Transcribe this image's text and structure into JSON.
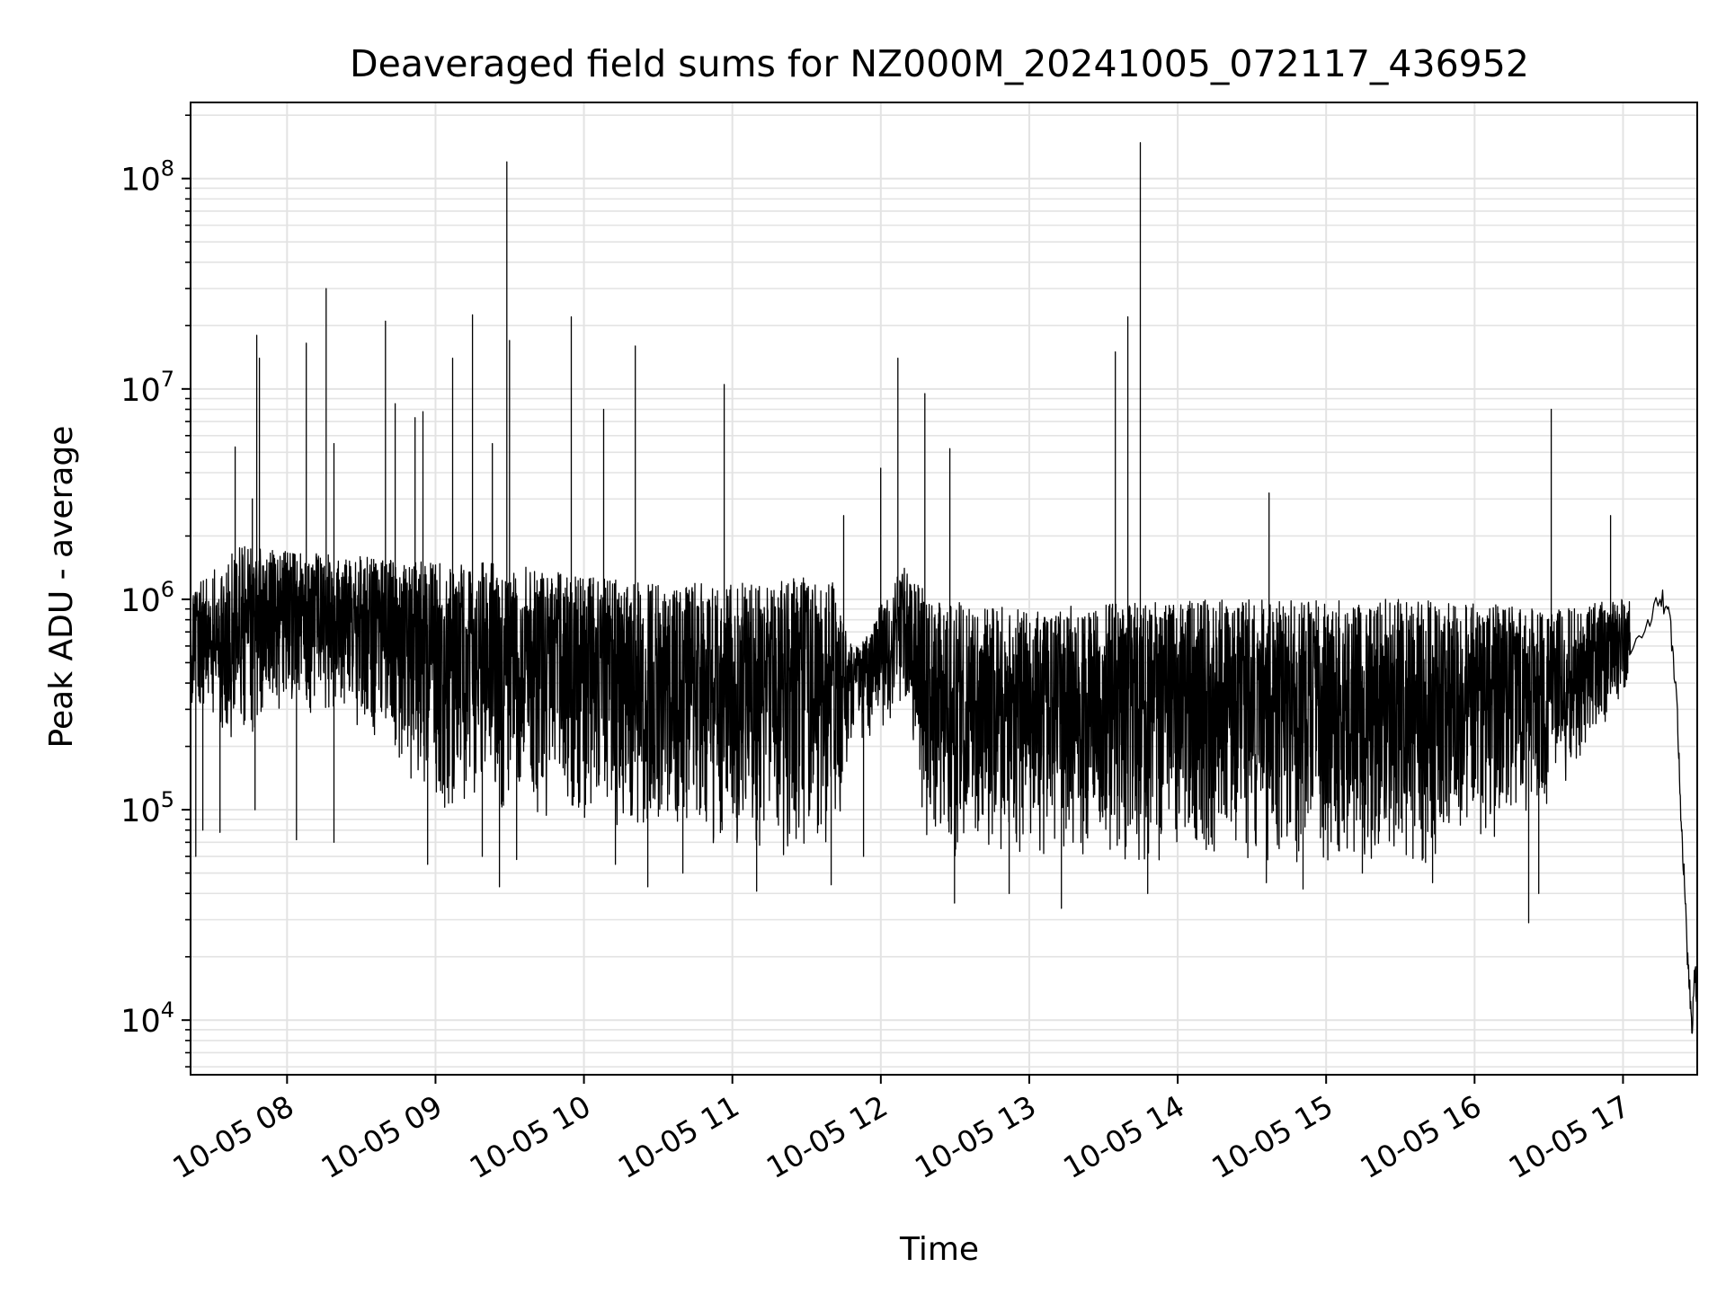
{
  "chart_data": {
    "type": "line",
    "title": "Deaveraged field sums for NZ000M_20241005_072117_436952",
    "xlabel": "Time",
    "ylabel": "Peak ADU - average",
    "yscale": "log",
    "ylim": [
      5500,
      230000000
    ],
    "xlim": [
      "2024-10-05 07:21",
      "2024-10-05 17:30"
    ],
    "grid": true,
    "x_ticks": [
      {
        "time": "2024-10-05 08:00",
        "label": "10-05 08"
      },
      {
        "time": "2024-10-05 09:00",
        "label": "10-05 09"
      },
      {
        "time": "2024-10-05 10:00",
        "label": "10-05 10"
      },
      {
        "time": "2024-10-05 11:00",
        "label": "10-05 11"
      },
      {
        "time": "2024-10-05 12:00",
        "label": "10-05 12"
      },
      {
        "time": "2024-10-05 13:00",
        "label": "10-05 13"
      },
      {
        "time": "2024-10-05 14:00",
        "label": "10-05 14"
      },
      {
        "time": "2024-10-05 15:00",
        "label": "10-05 15"
      },
      {
        "time": "2024-10-05 16:00",
        "label": "10-05 16"
      },
      {
        "time": "2024-10-05 17:00",
        "label": "10-05 17"
      }
    ],
    "y_ticks": [
      {
        "value": 10000,
        "base": "10",
        "exp": "4"
      },
      {
        "value": 100000,
        "base": "10",
        "exp": "5"
      },
      {
        "value": 1000000,
        "base": "10",
        "exp": "6"
      },
      {
        "value": 10000000,
        "base": "10",
        "exp": "7"
      },
      {
        "value": 100000000,
        "base": "10",
        "exp": "8"
      }
    ],
    "series": [
      {
        "color": "#000000",
        "envelope": [
          {
            "time": "2024-10-05 07:21",
            "low": 300000,
            "high": 1100000
          },
          {
            "time": "2024-10-05 07:40",
            "low": 200000,
            "high": 1800000
          },
          {
            "time": "2024-10-05 08:00",
            "low": 300000,
            "high": 1700000
          },
          {
            "time": "2024-10-05 08:30",
            "low": 250000,
            "high": 1600000
          },
          {
            "time": "2024-10-05 09:00",
            "low": 100000,
            "high": 1500000
          },
          {
            "time": "2024-10-05 09:30",
            "low": 100000,
            "high": 1500000
          },
          {
            "time": "2024-10-05 10:00",
            "low": 80000,
            "high": 1300000
          },
          {
            "time": "2024-10-05 10:30",
            "low": 70000,
            "high": 1200000
          },
          {
            "time": "2024-10-05 11:00",
            "low": 60000,
            "high": 1200000
          },
          {
            "time": "2024-10-05 11:40",
            "low": 60000,
            "high": 1300000
          },
          {
            "time": "2024-10-05 11:50",
            "low": 200000,
            "high": 600000
          },
          {
            "time": "2024-10-05 12:10",
            "low": 300000,
            "high": 1500000
          },
          {
            "time": "2024-10-05 12:20",
            "low": 60000,
            "high": 1000000
          },
          {
            "time": "2024-10-05 13:00",
            "low": 60000,
            "high": 900000
          },
          {
            "time": "2024-10-05 14:00",
            "low": 55000,
            "high": 1000000
          },
          {
            "time": "2024-10-05 15:00",
            "low": 55000,
            "high": 1000000
          },
          {
            "time": "2024-10-05 15:45",
            "low": 55000,
            "high": 1000000
          },
          {
            "time": "2024-10-05 16:30",
            "low": 100000,
            "high": 900000
          },
          {
            "time": "2024-10-05 17:00",
            "low": 350000,
            "high": 1000000
          },
          {
            "time": "2024-10-05 17:15",
            "low": 700000,
            "high": 1300000
          }
        ],
        "spikes": [
          {
            "time": "2024-10-05 07:39",
            "value": 5300000
          },
          {
            "time": "2024-10-05 07:46",
            "value": 3000000
          },
          {
            "time": "2024-10-05 07:48",
            "value": 18000000
          },
          {
            "time": "2024-10-05 07:49",
            "value": 14000000
          },
          {
            "time": "2024-10-05 08:08",
            "value": 16500000
          },
          {
            "time": "2024-10-05 08:16",
            "value": 30000000
          },
          {
            "time": "2024-10-05 08:19",
            "value": 5500000
          },
          {
            "time": "2024-10-05 08:40",
            "value": 21000000
          },
          {
            "time": "2024-10-05 08:44",
            "value": 8500000
          },
          {
            "time": "2024-10-05 08:52",
            "value": 7300000
          },
          {
            "time": "2024-10-05 08:55",
            "value": 7800000
          },
          {
            "time": "2024-10-05 09:07",
            "value": 14000000
          },
          {
            "time": "2024-10-05 09:15",
            "value": 22500000
          },
          {
            "time": "2024-10-05 09:23",
            "value": 5500000
          },
          {
            "time": "2024-10-05 09:29",
            "value": 120000000
          },
          {
            "time": "2024-10-05 09:30",
            "value": 17000000
          },
          {
            "time": "2024-10-05 09:55",
            "value": 22000000
          },
          {
            "time": "2024-10-05 10:08",
            "value": 8000000
          },
          {
            "time": "2024-10-05 10:21",
            "value": 16000000
          },
          {
            "time": "2024-10-05 10:57",
            "value": 10500000
          },
          {
            "time": "2024-10-05 11:45",
            "value": 2500000
          },
          {
            "time": "2024-10-05 12:00",
            "value": 4200000
          },
          {
            "time": "2024-10-05 12:07",
            "value": 14000000
          },
          {
            "time": "2024-10-05 12:18",
            "value": 9500000
          },
          {
            "time": "2024-10-05 12:28",
            "value": 5200000
          },
          {
            "time": "2024-10-05 13:35",
            "value": 15000000
          },
          {
            "time": "2024-10-05 13:40",
            "value": 22000000
          },
          {
            "time": "2024-10-05 13:45",
            "value": 148000000
          },
          {
            "time": "2024-10-05 14:37",
            "value": 3200000
          },
          {
            "time": "2024-10-05 16:31",
            "value": 8000000
          },
          {
            "time": "2024-10-05 16:55",
            "value": 2500000
          }
        ],
        "dips": [
          {
            "time": "2024-10-05 07:23",
            "value": 60000
          },
          {
            "time": "2024-10-05 07:26",
            "value": 80000
          },
          {
            "time": "2024-10-05 07:33",
            "value": 78000
          },
          {
            "time": "2024-10-05 07:47",
            "value": 100000
          },
          {
            "time": "2024-10-05 08:04",
            "value": 72000
          },
          {
            "time": "2024-10-05 08:19",
            "value": 70000
          },
          {
            "time": "2024-10-05 08:57",
            "value": 55000
          },
          {
            "time": "2024-10-05 09:19",
            "value": 60000
          },
          {
            "time": "2024-10-05 09:26",
            "value": 43000
          },
          {
            "time": "2024-10-05 09:33",
            "value": 58000
          },
          {
            "time": "2024-10-05 10:13",
            "value": 55000
          },
          {
            "time": "2024-10-05 10:26",
            "value": 43000
          },
          {
            "time": "2024-10-05 10:40",
            "value": 50000
          },
          {
            "time": "2024-10-05 11:10",
            "value": 41000
          },
          {
            "time": "2024-10-05 11:40",
            "value": 44000
          },
          {
            "time": "2024-10-05 11:53",
            "value": 60000
          },
          {
            "time": "2024-10-05 12:30",
            "value": 36000
          },
          {
            "time": "2024-10-05 12:52",
            "value": 40000
          },
          {
            "time": "2024-10-05 13:13",
            "value": 34000
          },
          {
            "time": "2024-10-05 13:48",
            "value": 40000
          },
          {
            "time": "2024-10-05 14:36",
            "value": 45000
          },
          {
            "time": "2024-10-05 14:51",
            "value": 42000
          },
          {
            "time": "2024-10-05 15:15",
            "value": 50000
          },
          {
            "time": "2024-10-05 15:43",
            "value": 45000
          },
          {
            "time": "2024-10-05 16:22",
            "value": 29000
          },
          {
            "time": "2024-10-05 16:26",
            "value": 40000
          }
        ],
        "tail": [
          {
            "time": "2024-10-05 17:03",
            "value": 550000
          },
          {
            "time": "2024-10-05 17:10",
            "value": 800000
          },
          {
            "time": "2024-10-05 17:15",
            "value": 1000000
          },
          {
            "time": "2024-10-05 17:18",
            "value": 900000
          },
          {
            "time": "2024-10-05 17:20",
            "value": 600000
          },
          {
            "time": "2024-10-05 17:22",
            "value": 300000
          },
          {
            "time": "2024-10-05 17:23",
            "value": 120000
          },
          {
            "time": "2024-10-05 17:24",
            "value": 70000
          },
          {
            "time": "2024-10-05 17:25",
            "value": 40000
          },
          {
            "time": "2024-10-05 17:26",
            "value": 20000
          },
          {
            "time": "2024-10-05 17:27",
            "value": 14000
          },
          {
            "time": "2024-10-05 17:28",
            "value": 9000
          },
          {
            "time": "2024-10-05 17:29",
            "value": 18000
          },
          {
            "time": "2024-10-05 17:30",
            "value": 12000
          }
        ]
      }
    ]
  }
}
